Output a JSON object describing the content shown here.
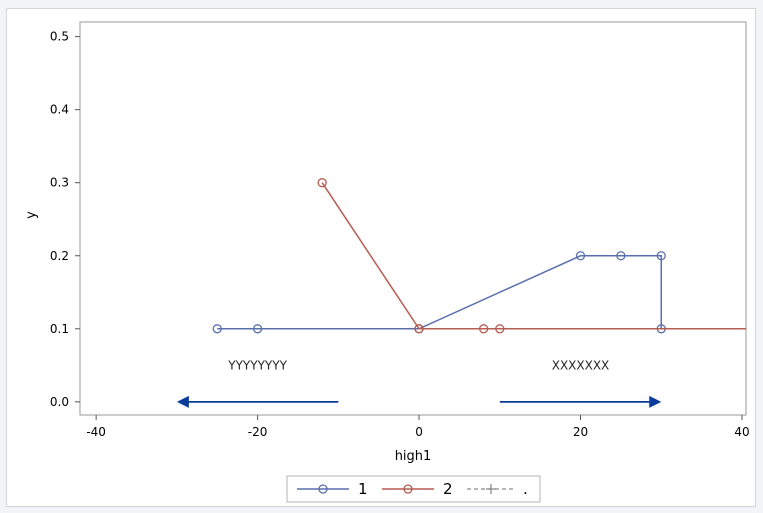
{
  "chart_data": {
    "type": "line",
    "title": "",
    "xlabel": "high1",
    "ylabel": "y",
    "xlim": [
      -42,
      40.5
    ],
    "ylim": [
      -0.018,
      0.52
    ],
    "xticks": [
      -40,
      -20,
      0,
      20,
      40
    ],
    "xtick_labels": [
      "-40",
      "-20",
      "0",
      "20",
      "40"
    ],
    "yticks": [
      0.0,
      0.1,
      0.2,
      0.3,
      0.4,
      0.5
    ],
    "ytick_labels": [
      "0.0",
      "0.1",
      "0.2",
      "0.3",
      "0.4",
      "0.5"
    ],
    "grid": false,
    "legend_position": "bottom",
    "series": [
      {
        "name": "1",
        "color": "#5a6fad",
        "x": [
          -25,
          -20,
          0,
          20,
          25,
          30,
          30
        ],
        "y": [
          0.1,
          0.1,
          0.1,
          0.2,
          0.2,
          0.2,
          0.1
        ],
        "marker": "circle",
        "extends_to_axis_end": false
      },
      {
        "name": "2",
        "color": "#b65c50",
        "x": [
          -12,
          0,
          8,
          10
        ],
        "y": [
          0.3,
          0.1,
          0.1,
          0.1
        ],
        "marker": "circle",
        "extends_to_axis_end": true
      },
      {
        "name": ".",
        "color": "#8a8a8a",
        "x": [],
        "y": [],
        "marker": "plus",
        "line_style": "dashed"
      }
    ],
    "annotations": [
      {
        "text": "YYYYYYYY",
        "x": -20,
        "y": 0.05
      },
      {
        "text": "XXXXXXX",
        "x": 20,
        "y": 0.05
      }
    ],
    "arrows": [
      {
        "x_from": -10,
        "x_to": -30,
        "y": 0.0,
        "color": "#0a3c9c"
      },
      {
        "x_from": 10,
        "x_to": 30,
        "y": 0.0,
        "color": "#0a3c9c"
      }
    ]
  }
}
